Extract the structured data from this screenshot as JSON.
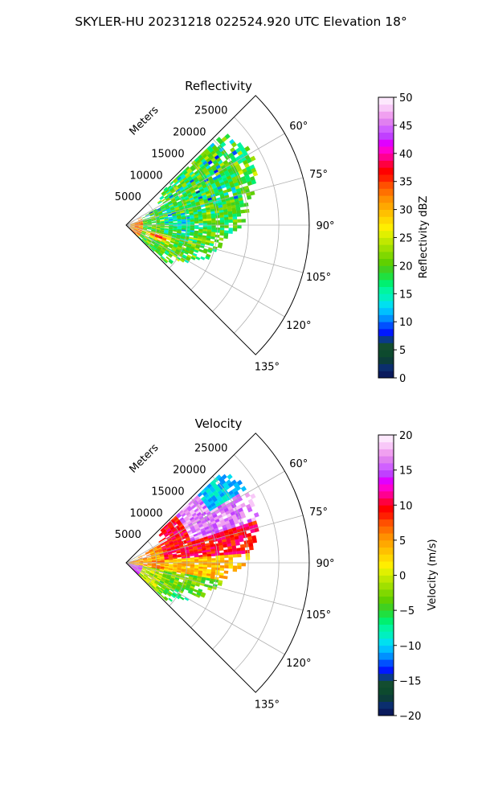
{
  "figure": {
    "suptitle": "SKYLER-HU  20231218  022524.920 UTC Elevation 18°"
  },
  "chart_data": [
    {
      "type": "heatmap",
      "projection": "polar-sector",
      "title": "Reflectivity",
      "radial_axis_label": "Meters",
      "radial_ticks": [
        "5000",
        "10000",
        "15000",
        "20000",
        "25000"
      ],
      "radial_range_m": [
        0,
        30000
      ],
      "angle_ticks": [
        "60°",
        "75°",
        "90°",
        "105°",
        "120°",
        "135°"
      ],
      "angle_range_deg": [
        45,
        135
      ],
      "grid": true,
      "colorbar": {
        "label": "Reflectivity dBZ",
        "vmin": 0,
        "vmax": 50,
        "ticks": [
          "0",
          "5",
          "10",
          "15",
          "20",
          "25",
          "30",
          "35",
          "40",
          "45",
          "50"
        ],
        "colors": [
          "#0a1a5c",
          "#0b2e6e",
          "#0c3d3a",
          "#0d4a2e",
          "#134d30",
          "#0a3a8a",
          "#0018ff",
          "#0050ff",
          "#0090ff",
          "#00c0ff",
          "#00e0f0",
          "#00f0c0",
          "#00f5a0",
          "#00f070",
          "#20e040",
          "#40d020",
          "#60d000",
          "#80d800",
          "#a0e000",
          "#c0e800",
          "#e0f000",
          "#ffee00",
          "#ffd800",
          "#ffc000",
          "#ffa800",
          "#ff9000",
          "#ff7000",
          "#ff5000",
          "#ff2000",
          "#ff0000",
          "#ff0040",
          "#ff0090",
          "#ff00d0",
          "#e000ff",
          "#c040ff",
          "#d060ff",
          "#e080f0",
          "#f0a0f0",
          "#f8c8f8",
          "#fde8fd"
        ]
      }
    },
    {
      "type": "heatmap",
      "projection": "polar-sector",
      "title": "Velocity",
      "radial_axis_label": "Meters",
      "radial_ticks": [
        "5000",
        "10000",
        "15000",
        "20000",
        "25000"
      ],
      "radial_range_m": [
        0,
        30000
      ],
      "angle_ticks": [
        "60°",
        "75°",
        "90°",
        "105°",
        "120°",
        "135°"
      ],
      "angle_range_deg": [
        45,
        135
      ],
      "grid": true,
      "colorbar": {
        "label": "Velocity (m/s)",
        "vmin": -20,
        "vmax": 20,
        "ticks": [
          "−20",
          "−15",
          "−10",
          "−5",
          "0",
          "5",
          "10",
          "15",
          "20"
        ],
        "colors": [
          "#0a1a5c",
          "#0b2e6e",
          "#0c3d3a",
          "#0d4a2e",
          "#134d30",
          "#0a3a8a",
          "#0018ff",
          "#0050ff",
          "#0090ff",
          "#00c0ff",
          "#00e0f0",
          "#00f0c0",
          "#00f5a0",
          "#00f070",
          "#20e040",
          "#40d020",
          "#60d000",
          "#80d800",
          "#a0e000",
          "#c0e800",
          "#e0f000",
          "#ffee00",
          "#ffd800",
          "#ffc000",
          "#ffa800",
          "#ff9000",
          "#ff7000",
          "#ff5000",
          "#ff2000",
          "#ff0000",
          "#ff0040",
          "#ff0090",
          "#ff00d0",
          "#e000ff",
          "#c040ff",
          "#d060ff",
          "#e080f0",
          "#f0a0f0",
          "#f8c8f8",
          "#fde8fd"
        ]
      }
    }
  ]
}
